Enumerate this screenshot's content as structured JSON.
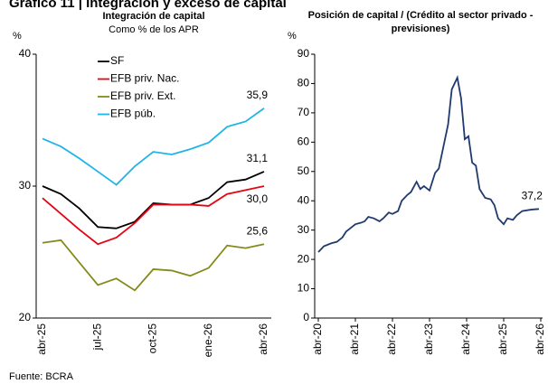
{
  "header": {
    "title": "Gráfico 11 | Integración y exceso de capital"
  },
  "footer": {
    "source": "Fuente: BCRA"
  },
  "chart_data": [
    {
      "type": "line",
      "title": "Integración de capital",
      "subtitle": "Como % de los APR",
      "y_unit": "%",
      "categories": [
        "abr-25",
        null,
        null,
        "jul-25",
        null,
        null,
        "oct-25",
        null,
        null,
        "ene-26",
        null,
        null,
        "abr-26"
      ],
      "ylim": [
        20,
        40
      ],
      "yticks": [
        20,
        30,
        40
      ],
      "legend": "top-left",
      "series": [
        {
          "name": "SF",
          "color": "#000000",
          "values": [
            30.0,
            29.4,
            28.3,
            26.9,
            26.8,
            27.3,
            28.7,
            28.6,
            28.6,
            29.1,
            30.3,
            30.5,
            31.1
          ],
          "value_labels": [
            null,
            null,
            null,
            null,
            null,
            null,
            null,
            null,
            null,
            null,
            null,
            null,
            "31,1"
          ]
        },
        {
          "name": "EFB priv. Nac.",
          "color": "#e30613",
          "values": [
            29.1,
            27.9,
            26.7,
            25.6,
            26.1,
            27.2,
            28.6,
            28.6,
            28.6,
            28.5,
            29.4,
            29.7,
            30.0
          ],
          "value_labels": [
            null,
            null,
            null,
            null,
            null,
            null,
            null,
            null,
            null,
            null,
            null,
            null,
            "30,0"
          ]
        },
        {
          "name": "EFB priv. Ext.",
          "color": "#858a1c",
          "values": [
            25.7,
            25.9,
            24.2,
            22.5,
            23.0,
            22.1,
            23.7,
            23.6,
            23.2,
            23.8,
            25.5,
            25.3,
            25.6
          ],
          "value_labels": [
            null,
            null,
            null,
            null,
            null,
            null,
            null,
            null,
            null,
            null,
            null,
            null,
            "25,6"
          ]
        },
        {
          "name": "EFB púb.",
          "color": "#1fb5e8",
          "values": [
            33.6,
            33.0,
            32.1,
            31.1,
            30.1,
            31.5,
            32.6,
            32.4,
            32.8,
            33.3,
            34.5,
            34.9,
            35.9
          ],
          "value_labels": [
            null,
            null,
            null,
            null,
            null,
            null,
            null,
            null,
            null,
            null,
            null,
            null,
            "35,9"
          ]
        }
      ]
    },
    {
      "type": "line",
      "title": "Posición de capital / (Crédito al sector privado - previsiones)",
      "y_unit": "%",
      "x": [
        2020.25,
        2020.4,
        2020.6,
        2020.75,
        2020.9,
        2021.0,
        2021.15,
        2021.25,
        2021.4,
        2021.5,
        2021.6,
        2021.75,
        2021.9,
        2022.0,
        2022.15,
        2022.25,
        2022.4,
        2022.5,
        2022.65,
        2022.75,
        2022.9,
        2023.0,
        2023.1,
        2023.25,
        2023.4,
        2023.5,
        2023.6,
        2023.75,
        2023.85,
        2024.0,
        2024.1,
        2024.2,
        2024.3,
        2024.4,
        2024.5,
        2024.6,
        2024.75,
        2024.9,
        2025.0,
        2025.1,
        2025.25,
        2025.35,
        2025.5,
        2025.6,
        2025.75,
        2026.0,
        2026.2
      ],
      "xlim": [
        2020.25,
        2026.25
      ],
      "xticks": [
        {
          "value": 2020.25,
          "label": "abr-20"
        },
        {
          "value": 2021.25,
          "label": "abr-21"
        },
        {
          "value": 2022.25,
          "label": "abr-22"
        },
        {
          "value": 2023.25,
          "label": "abr-23"
        },
        {
          "value": 2024.25,
          "label": "abr-24"
        },
        {
          "value": 2025.25,
          "label": "abr-25"
        },
        {
          "value": 2026.25,
          "label": "abr-26"
        }
      ],
      "ylim": [
        0,
        90
      ],
      "yticks": [
        0,
        10,
        20,
        30,
        40,
        50,
        60,
        70,
        80,
        90
      ],
      "series": [
        {
          "color": "#1f3a6e",
          "values": [
            22.5,
            24.5,
            25.5,
            26,
            27.5,
            29.5,
            31,
            32,
            32.5,
            33,
            34.5,
            34,
            33,
            34,
            36,
            35.5,
            36.5,
            40,
            42,
            43,
            46.5,
            44,
            45,
            43.5,
            49.5,
            51,
            57,
            66,
            78,
            82,
            75,
            61,
            62,
            53,
            52,
            44,
            41,
            40.5,
            38.5,
            34,
            32,
            34,
            33.5,
            35,
            36.5,
            37,
            37.2
          ],
          "value_labels": [
            null,
            null,
            null,
            null,
            null,
            null,
            null,
            null,
            null,
            null,
            null,
            null,
            null,
            null,
            null,
            null,
            null,
            null,
            null,
            null,
            null,
            null,
            null,
            null,
            null,
            null,
            null,
            null,
            null,
            null,
            null,
            null,
            null,
            null,
            null,
            null,
            null,
            null,
            null,
            null,
            null,
            null,
            null,
            null,
            null,
            null,
            "37,2"
          ]
        }
      ]
    }
  ]
}
